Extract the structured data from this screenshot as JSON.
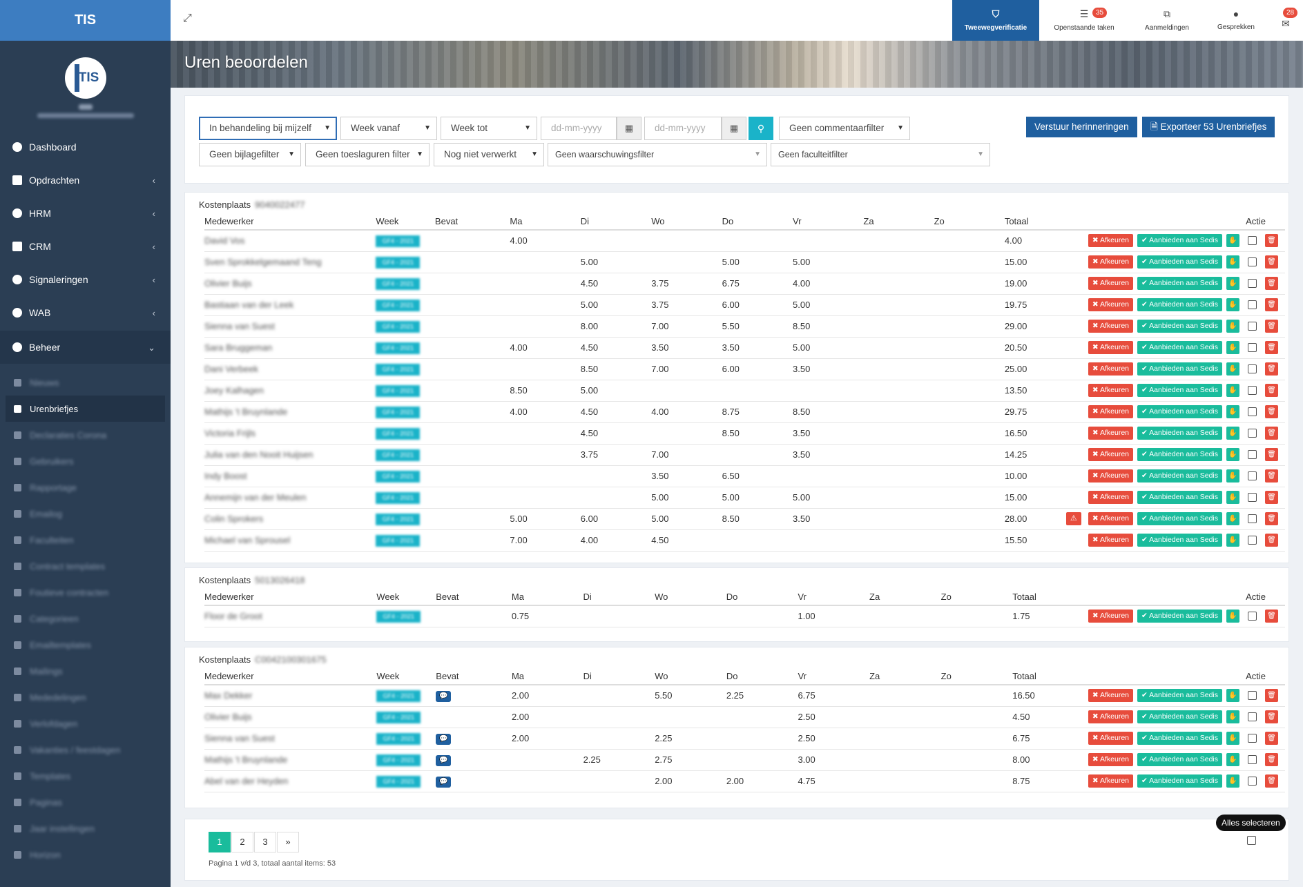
{
  "brand": "TIS",
  "logo_text": "TIS",
  "nav": [
    {
      "label": "Dashboard",
      "icon": "dashboard-icon"
    },
    {
      "label": "Opdrachten",
      "icon": "briefcase-icon"
    },
    {
      "label": "HRM",
      "icon": "globe-icon"
    },
    {
      "label": "CRM",
      "icon": "building-icon"
    },
    {
      "label": "Signaleringen",
      "icon": "leaf-icon"
    },
    {
      "label": "WAB",
      "icon": "info-icon"
    },
    {
      "label": "Beheer",
      "icon": "globe-icon"
    }
  ],
  "sub_nav": [
    {
      "label": "Nieuws",
      "active": false
    },
    {
      "label": "Urenbriefjes",
      "active": true
    },
    {
      "label": "Declaraties Corona",
      "active": false
    },
    {
      "label": "Gebruikers",
      "active": false
    },
    {
      "label": "Rapportage",
      "active": false
    },
    {
      "label": "Emailog",
      "active": false
    },
    {
      "label": "Faculteiten",
      "active": false
    },
    {
      "label": "Contract templates",
      "active": false
    },
    {
      "label": "Foutieve contracten",
      "active": false
    },
    {
      "label": "Categorieen",
      "active": false
    },
    {
      "label": "Emailtemplates",
      "active": false
    },
    {
      "label": "Mailings",
      "active": false
    },
    {
      "label": "Mededelingen",
      "active": false
    },
    {
      "label": "Verlofdagen",
      "active": false
    },
    {
      "label": "Vakanties / feestdagen",
      "active": false
    },
    {
      "label": "Templates",
      "active": false
    },
    {
      "label": "Paginas",
      "active": false
    },
    {
      "label": "Jaar instellingen",
      "active": false
    },
    {
      "label": "Horizon",
      "active": false
    }
  ],
  "topbar": {
    "twofa": "Tweewegverificatie",
    "tasks": "Openstaande taken",
    "tasks_badge": "35",
    "signups": "Aanmeldingen",
    "chats": "Gesprekken",
    "mail_badge": "28"
  },
  "page_title": "Uren beoordelen",
  "filters": {
    "status": "In behandeling bij mijzelf",
    "week_from": "Week vanaf",
    "week_to": "Week tot",
    "date_ph1": "dd-mm-yyyy",
    "date_ph2": "dd-mm-yyyy",
    "comment": "Geen commentaarfilter",
    "attachment": "Geen bijlagefilter",
    "allowance": "Geen toeslaguren filter",
    "processed": "Nog niet verwerkt",
    "warning": "Geen waarschuwingsfilter",
    "faculty": "Geen faculteitfilter"
  },
  "buttons": {
    "remind": "Verstuur herinneringen",
    "export": "Exporteer 53 Urenbriefjes",
    "reject": "Afkeuren",
    "offer": "Aanbieden aan Sedis"
  },
  "columns": [
    "Medewerker",
    "Week",
    "Bevat",
    "Ma",
    "Di",
    "Wo",
    "Do",
    "Vr",
    "Za",
    "Zo",
    "Totaal",
    "Actie"
  ],
  "cost_label": "Kostenplaats",
  "groups": [
    {
      "code": "9040022477",
      "rows": [
        {
          "name": "David Vos",
          "week": "GF4 - 2021",
          "bevat": false,
          "ma": "4.00",
          "di": "",
          "wo": "",
          "do": "",
          "vr": "",
          "za": "",
          "zo": "",
          "total": "4.00",
          "warn": false
        },
        {
          "name": "Sven Sprokkelgemaand Teng",
          "week": "GF4 - 2021",
          "bevat": false,
          "ma": "",
          "di": "5.00",
          "wo": "",
          "do": "5.00",
          "vr": "5.00",
          "za": "",
          "zo": "",
          "total": "15.00",
          "warn": false
        },
        {
          "name": "Olivier Buijs",
          "week": "GF4 - 2021",
          "bevat": false,
          "ma": "",
          "di": "4.50",
          "wo": "3.75",
          "do": "6.75",
          "vr": "4.00",
          "za": "",
          "zo": "",
          "total": "19.00",
          "warn": false
        },
        {
          "name": "Bastiaan van der Leek",
          "week": "GF4 - 2021",
          "bevat": false,
          "ma": "",
          "di": "5.00",
          "wo": "3.75",
          "do": "6.00",
          "vr": "5.00",
          "za": "",
          "zo": "",
          "total": "19.75",
          "warn": false
        },
        {
          "name": "Sienna van Suest",
          "week": "GF4 - 2021",
          "bevat": false,
          "ma": "",
          "di": "8.00",
          "wo": "7.00",
          "do": "5.50",
          "vr": "8.50",
          "za": "",
          "zo": "",
          "total": "29.00",
          "warn": false
        },
        {
          "name": "Sara Bruggeman",
          "week": "GF4 - 2021",
          "bevat": false,
          "ma": "4.00",
          "di": "4.50",
          "wo": "3.50",
          "do": "3.50",
          "vr": "5.00",
          "za": "",
          "zo": "",
          "total": "20.50",
          "warn": false
        },
        {
          "name": "Dani Verbeek",
          "week": "GF4 - 2021",
          "bevat": false,
          "ma": "",
          "di": "8.50",
          "wo": "7.00",
          "do": "6.00",
          "vr": "3.50",
          "za": "",
          "zo": "",
          "total": "25.00",
          "warn": false
        },
        {
          "name": "Joey Kalhagen",
          "week": "GF4 - 2021",
          "bevat": false,
          "ma": "8.50",
          "di": "5.00",
          "wo": "",
          "do": "",
          "vr": "",
          "za": "",
          "zo": "",
          "total": "13.50",
          "warn": false
        },
        {
          "name": "Mathijs 't Bruynlande",
          "week": "GF4 - 2021",
          "bevat": false,
          "ma": "4.00",
          "di": "4.50",
          "wo": "4.00",
          "do": "8.75",
          "vr": "8.50",
          "za": "",
          "zo": "",
          "total": "29.75",
          "warn": false
        },
        {
          "name": "Victoria Frijls",
          "week": "GF4 - 2021",
          "bevat": false,
          "ma": "",
          "di": "4.50",
          "wo": "",
          "do": "8.50",
          "vr": "3.50",
          "za": "",
          "zo": "",
          "total": "16.50",
          "warn": false
        },
        {
          "name": "Julia van den Nooit Huijsen",
          "week": "GF4 - 2021",
          "bevat": false,
          "ma": "",
          "di": "3.75",
          "wo": "7.00",
          "do": "",
          "vr": "3.50",
          "za": "",
          "zo": "",
          "total": "14.25",
          "warn": false
        },
        {
          "name": "Indy Boost",
          "week": "GF4 - 2021",
          "bevat": false,
          "ma": "",
          "di": "",
          "wo": "3.50",
          "do": "6.50",
          "vr": "",
          "za": "",
          "zo": "",
          "total": "10.00",
          "warn": false
        },
        {
          "name": "Annemijn van der Meulen",
          "week": "GF4 - 2021",
          "bevat": false,
          "ma": "",
          "di": "",
          "wo": "5.00",
          "do": "5.00",
          "vr": "5.00",
          "za": "",
          "zo": "",
          "total": "15.00",
          "warn": false
        },
        {
          "name": "Colin Sprokers",
          "week": "GF4 - 2021",
          "bevat": false,
          "ma": "5.00",
          "di": "6.00",
          "wo": "5.00",
          "do": "8.50",
          "vr": "3.50",
          "za": "",
          "zo": "",
          "total": "28.00",
          "warn": true
        },
        {
          "name": "Michael van Sprousel",
          "week": "GF4 - 2021",
          "bevat": false,
          "ma": "7.00",
          "di": "4.00",
          "wo": "4.50",
          "do": "",
          "vr": "",
          "za": "",
          "zo": "",
          "total": "15.50",
          "warn": false
        }
      ]
    },
    {
      "code": "5013026418",
      "rows": [
        {
          "name": "Floor de Groot",
          "week": "GF4 - 2021",
          "bevat": false,
          "ma": "0.75",
          "di": "",
          "wo": "",
          "do": "",
          "vr": "1.00",
          "za": "",
          "zo": "",
          "total": "1.75",
          "warn": false
        }
      ]
    },
    {
      "code": "C0042100301675",
      "rows": [
        {
          "name": "Max Dekker",
          "week": "GF4 - 2021",
          "bevat": true,
          "ma": "2.00",
          "di": "",
          "wo": "5.50",
          "do": "2.25",
          "vr": "6.75",
          "za": "",
          "zo": "",
          "total": "16.50",
          "warn": false
        },
        {
          "name": "Olivier Buijs",
          "week": "GF4 - 2021",
          "bevat": false,
          "ma": "2.00",
          "di": "",
          "wo": "",
          "do": "",
          "vr": "2.50",
          "za": "",
          "zo": "",
          "total": "4.50",
          "warn": false
        },
        {
          "name": "Sienna van Suest",
          "week": "GF4 - 2021",
          "bevat": true,
          "ma": "2.00",
          "di": "",
          "wo": "2.25",
          "do": "",
          "vr": "2.50",
          "za": "",
          "zo": "",
          "total": "6.75",
          "warn": false
        },
        {
          "name": "Mathijs 't Bruynlande",
          "week": "GF4 - 2021",
          "bevat": true,
          "ma": "",
          "di": "2.25",
          "wo": "2.75",
          "do": "",
          "vr": "3.00",
          "za": "",
          "zo": "",
          "total": "8.00",
          "warn": false
        },
        {
          "name": "Abel van der Heyden",
          "week": "GF4 - 2021",
          "bevat": true,
          "ma": "",
          "di": "",
          "wo": "2.00",
          "do": "2.00",
          "vr": "4.75",
          "za": "",
          "zo": "",
          "total": "8.75",
          "warn": false
        }
      ]
    }
  ],
  "pagination": {
    "pages": [
      "1",
      "2",
      "3",
      "»"
    ],
    "info": "Pagina 1 v/d 3, totaal aantal items: 53"
  },
  "select_all_tooltip": "Alles selecteren",
  "colors": {
    "sidebar": "#2b3e54",
    "brand": "#3d7dc1",
    "primary": "#1f5f9f",
    "danger": "#e74c3c",
    "success": "#1abc9c",
    "info": "#1ab3c9"
  }
}
